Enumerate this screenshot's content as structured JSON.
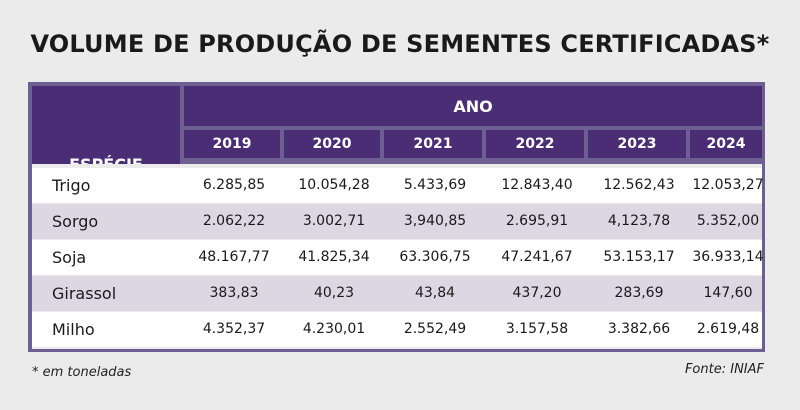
{
  "title": "VOLUME DE PRODUÇÃO DE SEMENTES CERTIFICADAS*",
  "table": {
    "species_header": "ESPÉCIE",
    "year_header": "ANO",
    "years": [
      "2019",
      "2020",
      "2021",
      "2022",
      "2023",
      "2024"
    ],
    "rows": [
      {
        "species": "Trigo",
        "values": [
          "6.285,85",
          "10.054,28",
          "5.433,69",
          "12.843,40",
          "12.562,43",
          "12.053,27"
        ]
      },
      {
        "species": "Sorgo",
        "values": [
          "2.062,22",
          "3.002,71",
          "3,940,85",
          "2.695,91",
          "4,123,78",
          "5.352,00"
        ]
      },
      {
        "species": "Soja",
        "values": [
          "48.167,77",
          "41.825,34",
          "63.306,75",
          "47.241,67",
          "53.153,17",
          "36.933,14"
        ]
      },
      {
        "species": "Girassol",
        "values": [
          "383,83",
          "40,23",
          "43,84",
          "437,20",
          "283,69",
          "147,60"
        ]
      },
      {
        "species": "Milho",
        "values": [
          "4.352,37",
          "4.230,01",
          "2.552,49",
          "3.157,58",
          "3.382,66",
          "2.619,48"
        ]
      }
    ]
  },
  "footnote": "* em toneladas",
  "source": "Fonte: INIAF",
  "colors": {
    "header": "#4a2d74",
    "border": "#6e5f93",
    "row_alt": "#dcd7e2"
  }
}
